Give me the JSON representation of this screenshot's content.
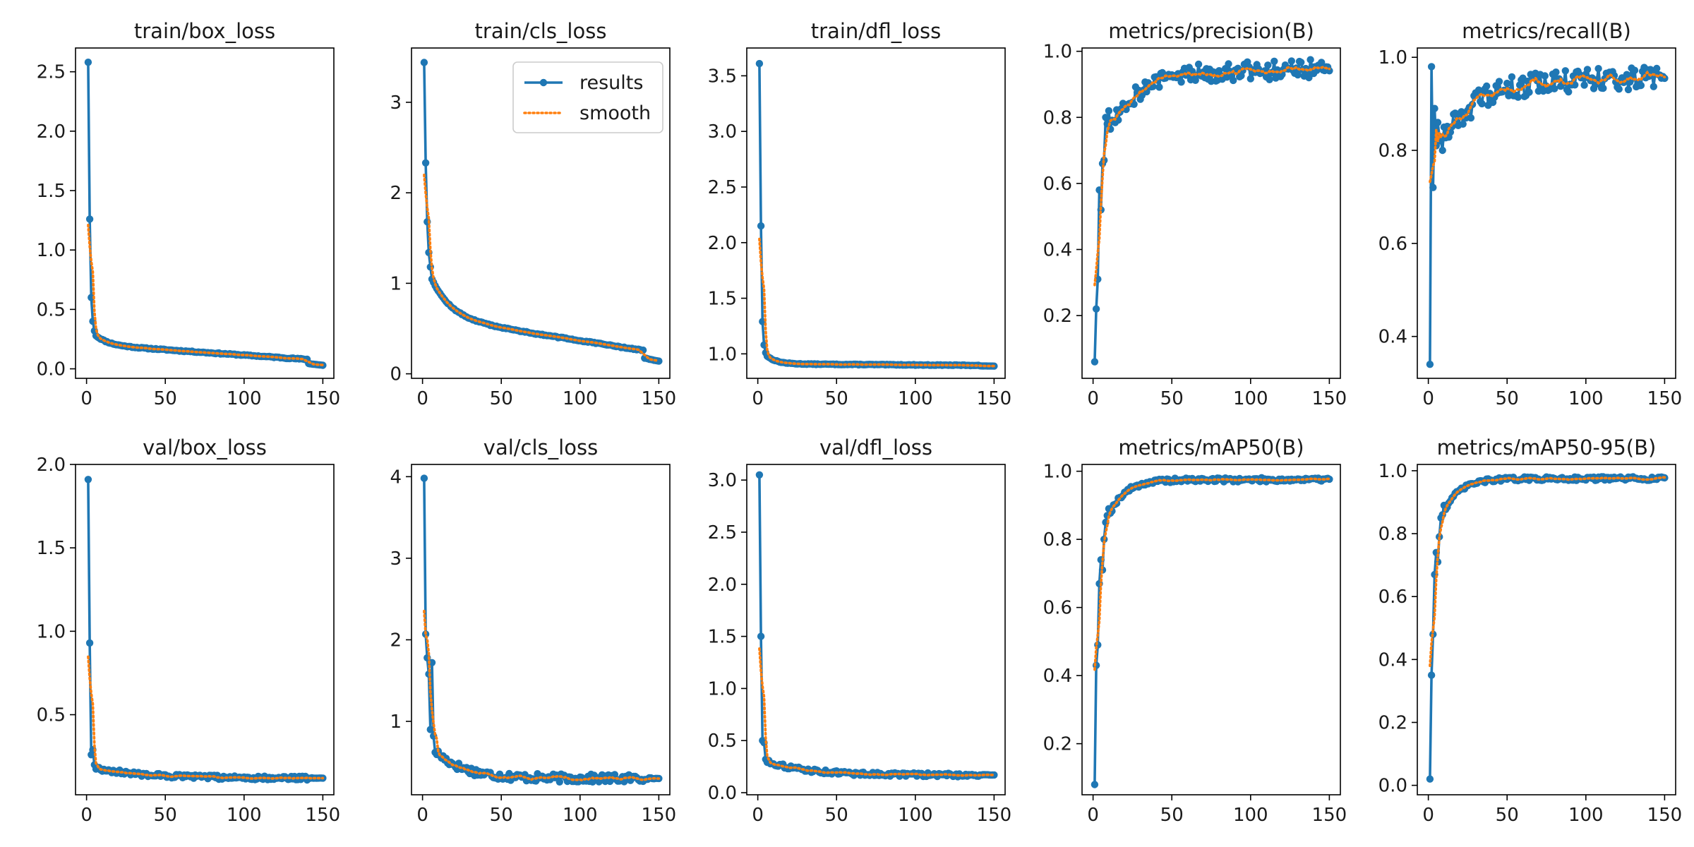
{
  "colors": {
    "results": "#1f77b4",
    "smooth": "#ff7f0e",
    "axis": "#000000"
  },
  "legend": {
    "results_label": "results",
    "smooth_label": "smooth",
    "location": "upper-right",
    "panel": 1
  },
  "chart_data": [
    {
      "type": "line",
      "title": "train/box_loss",
      "xlim": [
        -7,
        157
      ],
      "ylim": [
        -0.08,
        2.7
      ],
      "xticks": [
        0,
        50,
        100,
        150
      ],
      "xtick_labels": [
        "0",
        "50",
        "100",
        "150"
      ],
      "yticks": [
        0,
        0.5,
        1,
        1.5,
        2,
        2.5
      ],
      "ytick_labels": [
        "0.0",
        "0.5",
        "1.0",
        "1.5",
        "2.0",
        "2.5"
      ],
      "gen": {
        "kind": "decay",
        "first": [
          2.58,
          1.26,
          0.6,
          0.4,
          0.32
        ],
        "start": 0.28,
        "tau": 8,
        "asym": 0.2,
        "slope": -0.0009,
        "noise": 0.004,
        "final": 0.03,
        "seed": 11
      }
    },
    {
      "type": "line",
      "title": "train/cls_loss",
      "xlim": [
        -7,
        157
      ],
      "ylim": [
        -0.05,
        3.6
      ],
      "xticks": [
        0,
        50,
        100,
        150
      ],
      "xtick_labels": [
        "0",
        "50",
        "100",
        "150"
      ],
      "yticks": [
        0,
        1,
        2,
        3
      ],
      "ytick_labels": [
        "0",
        "1",
        "2",
        "3"
      ],
      "gen": {
        "kind": "decay",
        "first": [
          3.44,
          2.33,
          1.68,
          1.34,
          1.18
        ],
        "start": 1.05,
        "tau": 12,
        "asym": 0.62,
        "slope": -0.0027,
        "noise": 0.006,
        "final": 0.14,
        "seed": 12
      }
    },
    {
      "type": "line",
      "title": "train/dfl_loss",
      "xlim": [
        -7,
        157
      ],
      "ylim": [
        0.78,
        3.75
      ],
      "xticks": [
        0,
        50,
        100,
        150
      ],
      "xtick_labels": [
        "0",
        "50",
        "100",
        "150"
      ],
      "yticks": [
        1,
        1.5,
        2,
        2.5,
        3,
        3.5
      ],
      "ytick_labels": [
        "1.0",
        "1.5",
        "2.0",
        "2.5",
        "3.0",
        "3.5"
      ],
      "gen": {
        "kind": "decay",
        "first": [
          3.61,
          2.15,
          1.29,
          1.08,
          1.01
        ],
        "start": 0.98,
        "tau": 6,
        "asym": 0.91,
        "slope": -0.0001,
        "noise": 0.003,
        "final": 0.89,
        "seed": 13
      }
    },
    {
      "type": "line",
      "title": "metrics/precision(B)",
      "xlim": [
        -7,
        157
      ],
      "ylim": [
        0.01,
        1.01
      ],
      "xticks": [
        0,
        50,
        100,
        150
      ],
      "xtick_labels": [
        "0",
        "50",
        "100",
        "150"
      ],
      "yticks": [
        0.2,
        0.4,
        0.6,
        0.8,
        1.0
      ],
      "ytick_labels": [
        "0.2",
        "0.4",
        "0.6",
        "0.8",
        "1.0"
      ],
      "gen": {
        "kind": "rise",
        "first": [
          0.06,
          0.22,
          0.31,
          0.58,
          0.52,
          0.66,
          0.67,
          0.8,
          0.78,
          0.82
        ],
        "start": 0.78,
        "tau": 20,
        "asym": 0.945,
        "noise": 0.03,
        "final": 0.95,
        "seed": 14
      }
    },
    {
      "type": "line",
      "title": "metrics/recall(B)",
      "xlim": [
        -7,
        157
      ],
      "ylim": [
        0.31,
        1.02
      ],
      "xticks": [
        0,
        50,
        100,
        150
      ],
      "xtick_labels": [
        "0",
        "50",
        "100",
        "150"
      ],
      "yticks": [
        0.4,
        0.6,
        0.8,
        1.0
      ],
      "ytick_labels": [
        "0.4",
        "0.6",
        "0.8",
        "1.0"
      ],
      "gen": {
        "kind": "rise",
        "first": [
          0.34,
          0.98,
          0.72,
          0.89,
          0.81,
          0.86,
          0.83,
          0.82,
          0.8,
          0.85
        ],
        "start": 0.84,
        "tau": 25,
        "asym": 0.955,
        "noise": 0.025,
        "final": 0.96,
        "seed": 15
      }
    },
    {
      "type": "line",
      "title": "val/box_loss",
      "xlim": [
        -7,
        157
      ],
      "ylim": [
        0.02,
        2.0
      ],
      "xticks": [
        0,
        50,
        100,
        150
      ],
      "xtick_labels": [
        "0",
        "50",
        "100",
        "150"
      ],
      "yticks": [
        0.5,
        1,
        1.5,
        2
      ],
      "ytick_labels": [
        "0.5",
        "1.0",
        "1.5",
        "2.0"
      ],
      "gen": {
        "kind": "decay",
        "first": [
          1.91,
          0.93,
          0.26,
          0.29,
          0.2
        ],
        "start": 0.18,
        "tau": 30,
        "asym": 0.12,
        "slope": 0,
        "noise": 0.012,
        "final": 0.12,
        "seed": 16
      }
    },
    {
      "type": "line",
      "title": "val/cls_loss",
      "xlim": [
        -7,
        157
      ],
      "ylim": [
        0.1,
        4.15
      ],
      "xticks": [
        0,
        50,
        100,
        150
      ],
      "xtick_labels": [
        "0",
        "50",
        "100",
        "150"
      ],
      "yticks": [
        1,
        2,
        3,
        4
      ],
      "ytick_labels": [
        "1",
        "2",
        "3",
        "4"
      ],
      "gen": {
        "kind": "decay",
        "first": [
          3.98,
          2.07,
          1.78,
          1.58,
          0.9,
          1.72,
          0.82,
          0.62
        ],
        "start": 0.62,
        "tau": 18,
        "asym": 0.3,
        "slope": 0,
        "noise": 0.05,
        "final": 0.3,
        "seed": 17
      }
    },
    {
      "type": "line",
      "title": "val/dfl_loss",
      "xlim": [
        -7,
        157
      ],
      "ylim": [
        -0.02,
        3.15
      ],
      "xticks": [
        0,
        50,
        100,
        150
      ],
      "xtick_labels": [
        "0",
        "50",
        "100",
        "150"
      ],
      "yticks": [
        0,
        0.5,
        1,
        1.5,
        2,
        2.5,
        3
      ],
      "ytick_labels": [
        "0.0",
        "0.5",
        "1.0",
        "1.5",
        "2.0",
        "2.5",
        "3.0"
      ],
      "gen": {
        "kind": "decay",
        "first": [
          3.05,
          1.5,
          0.5,
          0.48,
          0.32
        ],
        "start": 0.3,
        "tau": 25,
        "asym": 0.17,
        "slope": 0,
        "noise": 0.018,
        "final": 0.17,
        "seed": 18
      }
    },
    {
      "type": "line",
      "title": "metrics/mAP50(B)",
      "xlim": [
        -7,
        157
      ],
      "ylim": [
        0.05,
        1.02
      ],
      "xticks": [
        0,
        50,
        100,
        150
      ],
      "xtick_labels": [
        "0",
        "50",
        "100",
        "150"
      ],
      "yticks": [
        0.2,
        0.4,
        0.6,
        0.8,
        1.0
      ],
      "ytick_labels": [
        "0.2",
        "0.4",
        "0.6",
        "0.8",
        "1.0"
      ],
      "gen": {
        "kind": "rise",
        "first": [
          0.08,
          0.43,
          0.49,
          0.67,
          0.74,
          0.71,
          0.8,
          0.85,
          0.87,
          0.89
        ],
        "start": 0.88,
        "tau": 10,
        "asym": 0.975,
        "noise": 0.006,
        "final": 0.98,
        "seed": 19
      }
    },
    {
      "type": "line",
      "title": "metrics/mAP50-95(B)",
      "xlim": [
        -7,
        157
      ],
      "ylim": [
        -0.03,
        1.02
      ],
      "xticks": [
        0,
        50,
        100,
        150
      ],
      "xtick_labels": [
        "0",
        "50",
        "100",
        "150"
      ],
      "yticks": [
        0,
        0.2,
        0.4,
        0.6,
        0.8,
        1.0
      ],
      "ytick_labels": [
        "0.0",
        "0.2",
        "0.4",
        "0.6",
        "0.8",
        "1.0"
      ],
      "gen": {
        "kind": "rise",
        "first": [
          0.02,
          0.35,
          0.48,
          0.67,
          0.74,
          0.71,
          0.79,
          0.85,
          0.86,
          0.89
        ],
        "start": 0.88,
        "tau": 10,
        "asym": 0.975,
        "noise": 0.006,
        "final": 0.98,
        "seed": 20
      }
    }
  ]
}
